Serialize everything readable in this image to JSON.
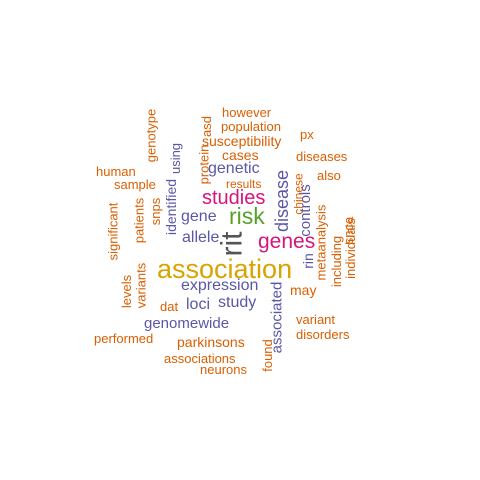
{
  "colors": {
    "orange": "#d95f02",
    "purple": "#5a57a6",
    "gold": "#d9a300",
    "green": "#57a12a",
    "magenta": "#d6157a",
    "gray": "#555555"
  },
  "words": [
    {
      "text": "association"
    },
    {
      "text": "rit"
    },
    {
      "text": "risk"
    },
    {
      "text": "genes"
    },
    {
      "text": "studies"
    },
    {
      "text": "disease"
    },
    {
      "text": "expression"
    },
    {
      "text": "gene"
    },
    {
      "text": "allele"
    },
    {
      "text": "genetic"
    },
    {
      "text": "loci"
    },
    {
      "text": "study"
    },
    {
      "text": "genomewide"
    },
    {
      "text": "parkinsons"
    },
    {
      "text": "associated"
    },
    {
      "text": "controls"
    },
    {
      "text": "identified"
    },
    {
      "text": "using"
    },
    {
      "text": "rin"
    },
    {
      "text": "variants"
    },
    {
      "text": "dat"
    },
    {
      "text": "may"
    },
    {
      "text": "however"
    },
    {
      "text": "population"
    },
    {
      "text": "susceptibility"
    },
    {
      "text": "cases"
    },
    {
      "text": "results"
    },
    {
      "text": "diseases"
    },
    {
      "text": "also"
    },
    {
      "text": "human"
    },
    {
      "text": "sample"
    },
    {
      "text": "genotype"
    },
    {
      "text": "protein"
    },
    {
      "text": "asd"
    },
    {
      "text": "px"
    },
    {
      "text": "chinese"
    },
    {
      "text": "metaanalysis"
    },
    {
      "text": "including"
    },
    {
      "text": "snca"
    },
    {
      "text": "individuals"
    },
    {
      "text": "significant"
    },
    {
      "text": "patients"
    },
    {
      "text": "snps"
    },
    {
      "text": "levels"
    },
    {
      "text": "variant"
    },
    {
      "text": "disorders"
    },
    {
      "text": "performed"
    },
    {
      "text": "associations"
    },
    {
      "text": "neurons"
    },
    {
      "text": "found"
    }
  ]
}
